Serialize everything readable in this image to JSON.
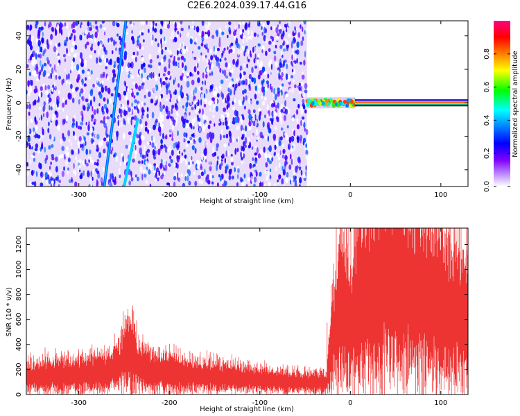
{
  "title": "C2E6.2024.039.17.44.G16",
  "colors": {
    "spectral_colormap": [
      "#ffffff",
      "#7f00ff",
      "#0000ff",
      "#00ffff",
      "#00ff00",
      "#ffff00",
      "#ff8000",
      "#ff0000",
      "#ff0080"
    ],
    "snr_series": "#ee3333",
    "frame": "#000000"
  },
  "chart_data": [
    {
      "type": "heatmap",
      "title": "C2E6.2024.039.17.44.G16",
      "xlabel": "Height of straight line (km)",
      "ylabel": "Frequency (Hz)",
      "xlim": [
        -358,
        130
      ],
      "ylim": [
        -50,
        49
      ],
      "xticks": [
        -300,
        -200,
        -100,
        0,
        100
      ],
      "yticks": [
        -40,
        -20,
        0,
        20,
        40
      ],
      "colorbar": {
        "label": "Normalized spectral amplitude",
        "range": [
          0,
          1
        ],
        "ticks": [
          0.0,
          0.2,
          0.4,
          0.6,
          0.8
        ]
      },
      "features": [
        {
          "name": "broadband noise region",
          "x_range": [
            -358,
            -48
          ],
          "freq_range": [
            -50,
            49
          ],
          "amplitude": 0.2
        },
        {
          "name": "drifting line 1",
          "from": [
            -272,
            -50
          ],
          "to": [
            -248,
            49
          ],
          "amplitude": 0.3
        },
        {
          "name": "drifting line 2",
          "from": [
            -250,
            -50
          ],
          "to": [
            -235,
            -10
          ],
          "amplitude": 0.35
        },
        {
          "name": "transition band",
          "x_range": [
            -48,
            5
          ],
          "freq": 0,
          "amplitude": 0.6
        },
        {
          "name": "carrier line",
          "x_range": [
            5,
            130
          ],
          "freq": 0,
          "amplitude": 0.9
        }
      ]
    },
    {
      "type": "line",
      "xlabel": "Height of straight line (km)",
      "ylabel": "SNR (10 * v/v)",
      "xlim": [
        -358,
        130
      ],
      "ylim": [
        0,
        1330
      ],
      "xticks": [
        -300,
        -200,
        -100,
        0,
        100
      ],
      "yticks": [
        0,
        200,
        400,
        600,
        800,
        1000,
        1200
      ],
      "x": [
        -358,
        -330,
        -300,
        -270,
        -255,
        -245,
        -235,
        -220,
        -200,
        -180,
        -150,
        -120,
        -100,
        -80,
        -60,
        -40,
        -26,
        -20,
        -15,
        -10,
        -5,
        0,
        5,
        10,
        20,
        30,
        40,
        50,
        60,
        70,
        80,
        90,
        100,
        110,
        120,
        130
      ],
      "y": [
        150,
        160,
        170,
        185,
        250,
        380,
        250,
        190,
        180,
        165,
        150,
        135,
        125,
        115,
        105,
        100,
        100,
        480,
        620,
        780,
        650,
        580,
        720,
        820,
        900,
        950,
        980,
        1000,
        940,
        880,
        840,
        800,
        760,
        720,
        680,
        640
      ]
    }
  ]
}
